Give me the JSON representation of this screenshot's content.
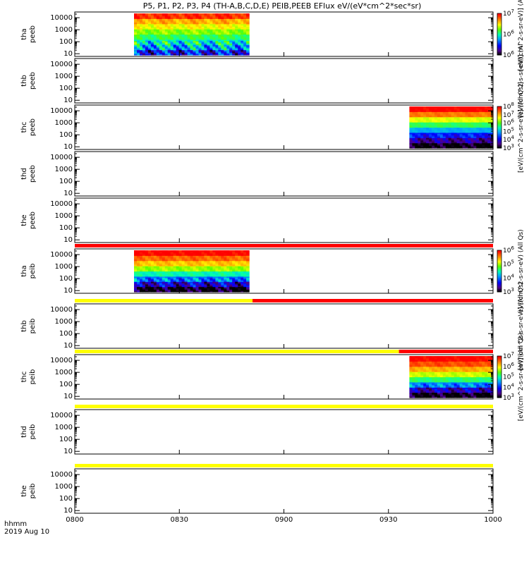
{
  "chart_data": {
    "type": "heatmap",
    "title": "P5, P1, P2, P3, P4 (TH-A,B,C,D,E) PEIB,PEEB EFlux eV/(eV*cm^2*sec*sr)",
    "time_label": "hhmm",
    "date_label": "2019 Aug 10",
    "x_ticks": [
      "0800",
      "0830",
      "0900",
      "0930",
      "1000"
    ],
    "x_range_min": [
      0,
      120
    ],
    "y_scale": "log",
    "y_ticks": [
      "10",
      "100",
      "1000",
      "10000"
    ],
    "panels": [
      {
        "probe": "tha",
        "instrument": "peeb",
        "colorbar": "log",
        "colorbar_label": "[eV/(cm^2-s-sr-eV)] (Al",
        "colorbar_ticks": [
          "10^6",
          "10^6",
          "10^7"
        ],
        "colorbar_range_exp": [
          5.5,
          7.8
        ],
        "data_intervals_min": [
          [
            17,
            50
          ]
        ],
        "spectrum_exp_by_energy": [
          6.0,
          6.4,
          6.6,
          6.8,
          7.0,
          7.2,
          7.4,
          7.7
        ]
      },
      {
        "probe": "thb",
        "instrument": "peeb",
        "colorbar_label": "[eV/(cm^2-s-sr-eV)] (Al",
        "data_intervals_min": []
      },
      {
        "probe": "thc",
        "instrument": "peeb",
        "colorbar": "log",
        "colorbar_label": "[eV/(cm^2-s-sr-eV)] (All Qs)]",
        "colorbar_ticks": [
          "10^3",
          "10^4",
          "10^5",
          "10^6",
          "10^7",
          "10^8"
        ],
        "colorbar_range_exp": [
          3,
          8
        ],
        "data_intervals_min": [
          [
            96,
            120
          ]
        ],
        "spectrum_exp_by_energy": [
          3.0,
          3.6,
          4.2,
          5.0,
          5.8,
          6.6,
          7.4,
          8.0
        ]
      },
      {
        "probe": "thd",
        "instrument": "peeb",
        "data_intervals_min": []
      },
      {
        "probe": "the",
        "instrument": "peeb",
        "data_intervals_min": []
      },
      {
        "probe": "tha",
        "instrument": "peib",
        "colorbar": "log",
        "colorbar_label": "eV/(cm^2-s-sr-eV) (All Qs)",
        "colorbar_ticks": [
          "10^3",
          "10^4",
          "10^5",
          "10^6"
        ],
        "colorbar_range_exp": [
          3,
          6
        ],
        "data_intervals_min": [
          [
            17,
            50
          ]
        ],
        "spectrum_exp_by_energy": [
          3.0,
          3.5,
          4.0,
          4.5,
          5.0,
          5.4,
          5.7,
          6.0
        ],
        "status_bar": [
          {
            "from": 0,
            "to": 120,
            "color": "#ff0000"
          }
        ]
      },
      {
        "probe": "thb",
        "instrument": "peib",
        "colorbar_label": "[eV/(cm^2-s-sr-eV)] (All Qs)",
        "data_intervals_min": [],
        "status_bar": [
          {
            "from": 0,
            "to": 51,
            "color": "#ffff00"
          },
          {
            "from": 51,
            "to": 120,
            "color": "#ff0000"
          }
        ]
      },
      {
        "probe": "thc",
        "instrument": "peib",
        "colorbar": "log",
        "colorbar_label": "[eV/(cm^2-s-sr-eV)] (All Qs)",
        "colorbar_ticks": [
          "10^3",
          "10^4",
          "10^5",
          "10^6",
          "10^7"
        ],
        "colorbar_range_exp": [
          3,
          7
        ],
        "data_intervals_min": [
          [
            96,
            120
          ]
        ],
        "spectrum_exp_by_energy": [
          3.0,
          3.6,
          4.4,
          5.2,
          5.8,
          6.3,
          6.7,
          7.0
        ],
        "status_bar": [
          {
            "from": 0,
            "to": 93,
            "color": "#ffff00"
          },
          {
            "from": 93,
            "to": 120,
            "color": "#ff0000"
          }
        ]
      },
      {
        "probe": "thd",
        "instrument": "peib",
        "data_intervals_min": [],
        "status_bar": [
          {
            "from": 0,
            "to": 120,
            "color": "#ffff00"
          }
        ]
      },
      {
        "probe": "the",
        "instrument": "peib",
        "data_intervals_min": [],
        "status_bar": [
          {
            "from": 0,
            "to": 120,
            "color": "#ffff00"
          }
        ]
      }
    ]
  }
}
